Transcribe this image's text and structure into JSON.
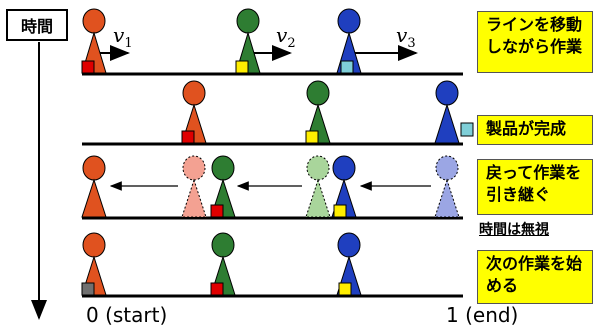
{
  "time_label": "時間",
  "velocity_labels": [
    {
      "symbol": "v",
      "sub": "1"
    },
    {
      "symbol": "v",
      "sub": "2"
    },
    {
      "symbol": "v",
      "sub": "3"
    }
  ],
  "notes": {
    "step1": "ラインを移動しながら作業",
    "step1_lines": [
      "ラインを移動",
      "しながら作業"
    ],
    "step2": "製品が完成",
    "step3": "戻って作業を引き継ぐ",
    "step3_lines": [
      "戻って作業を",
      "引き継ぐ"
    ],
    "step3_sub": "時間は無視",
    "step4": "次の作業を始める",
    "step4_lines": [
      "次の作業を始",
      "める"
    ]
  },
  "axis": {
    "start_label": "0 (start)",
    "end_label": "1 (end)"
  },
  "colors": {
    "orange": "#e0521f",
    "green": "#2e7d32",
    "blue": "#1f3fbf",
    "orange_faded": "#f3a192",
    "green_faded": "#a9d59b",
    "blue_faded": "#9ba6e4",
    "red_item": "#e00000",
    "yellow_item": "#ffee00",
    "cyan_item": "#7fcfd8",
    "gray_item": "#707070",
    "note_bg": "#ffff00"
  }
}
